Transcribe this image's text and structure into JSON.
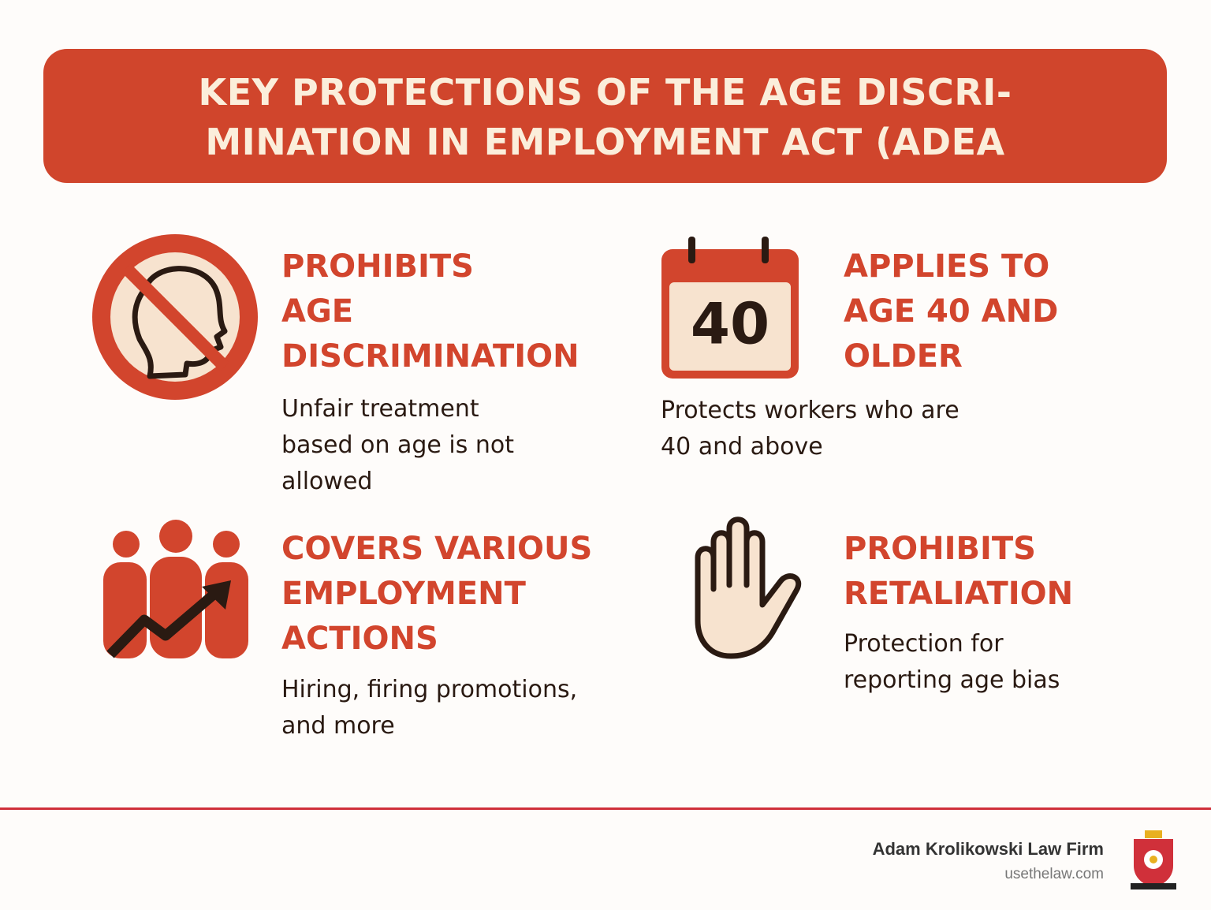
{
  "header": {
    "title_lines": [
      "KEY PROTECTIONS OF THE AGE DISCRI-",
      "MINATION IN EMPLOYMENT ACT (ADEA"
    ]
  },
  "items": [
    {
      "heading_lines": [
        "PROHIBITS",
        "AGE",
        "DISCRIMINATION"
      ],
      "body_lines": [
        "Unfair treatment",
        "based on age is not",
        "allowed"
      ]
    },
    {
      "icon_text": "40",
      "heading_lines": [
        "APPLIES TO",
        "AGE 40 AND",
        "OLDER"
      ],
      "body_lines": [
        "Protects workers who are",
        "40 and above"
      ]
    },
    {
      "heading_lines": [
        "COVERS VARIOUS",
        "EMPLOYMENT",
        "ACTIONS"
      ],
      "body_lines": [
        "Hiring, firing promotions,",
        "and more"
      ]
    },
    {
      "heading_lines": [
        "PROHIBITS",
        "RETALIATION"
      ],
      "body_lines": [
        "Protection for",
        "reporting age bias"
      ]
    }
  ],
  "footer": {
    "firm": "Adam Krolikowski Law Firm",
    "url": "usethelaw.com"
  }
}
